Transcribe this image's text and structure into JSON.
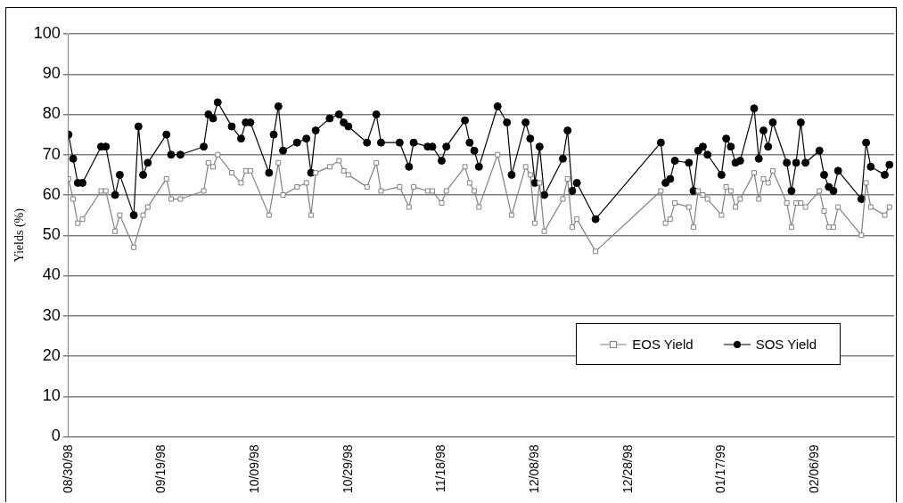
{
  "chart_data": {
    "type": "line",
    "ylabel": "Yields (%)",
    "xlim": [
      "1998-08-30",
      "1999-02-23"
    ],
    "xticks": [
      {
        "value": "1998-08-30",
        "label": "08/30/98"
      },
      {
        "value": "1998-09-19",
        "label": "09/19/98"
      },
      {
        "value": "1998-10-09",
        "label": "10/09/98"
      },
      {
        "value": "1998-10-29",
        "label": "10/29/98"
      },
      {
        "value": "1998-11-18",
        "label": "11/18/98"
      },
      {
        "value": "1998-12-08",
        "label": "12/08/98"
      },
      {
        "value": "1998-12-28",
        "label": "12/28/98"
      },
      {
        "value": "1999-01-17",
        "label": "01/17/99"
      },
      {
        "value": "1999-02-06",
        "label": "02/06/99"
      }
    ],
    "ylim": [
      0,
      100
    ],
    "yticks": [
      0,
      10,
      20,
      30,
      40,
      50,
      60,
      70,
      80,
      90,
      100
    ],
    "grid": "y",
    "legend": "bottom right",
    "line_style": "solid",
    "series": [
      {
        "name": "EOS Yield",
        "color": "#808080",
        "marker": "square",
        "x": [
          "1998-08-30",
          "1998-08-31",
          "1998-09-01",
          "1998-09-02",
          "1998-09-06",
          "1998-09-07",
          "1998-09-09",
          "1998-09-10",
          "1998-09-13",
          "1998-09-15",
          "1998-09-16",
          "1998-09-20",
          "1998-09-21",
          "1998-09-23",
          "1998-09-28",
          "1998-09-29",
          "1998-09-30",
          "1998-10-01",
          "1998-10-04",
          "1998-10-06",
          "1998-10-07",
          "1998-10-08",
          "1998-10-12",
          "1998-10-14",
          "1998-10-15",
          "1998-10-18",
          "1998-10-20",
          "1998-10-21",
          "1998-10-22",
          "1998-10-25",
          "1998-10-27",
          "1998-10-28",
          "1998-10-29",
          "1998-11-02",
          "1998-11-04",
          "1998-11-05",
          "1998-11-09",
          "1998-11-11",
          "1998-11-12",
          "1998-11-15",
          "1998-11-16",
          "1998-11-18",
          "1998-11-19",
          "1998-11-23",
          "1998-11-24",
          "1998-11-25",
          "1998-11-26",
          "1998-11-30",
          "1998-12-03",
          "1998-12-06",
          "1998-12-07",
          "1998-12-08",
          "1998-12-09",
          "1998-12-10",
          "1998-12-14",
          "1998-12-15",
          "1998-12-16",
          "1998-12-17",
          "1998-12-21",
          "1999-01-04",
          "1999-01-05",
          "1999-01-06",
          "1999-01-07",
          "1999-01-10",
          "1999-01-11",
          "1999-01-12",
          "1999-01-13",
          "1999-01-14",
          "1999-01-17",
          "1999-01-18",
          "1999-01-19",
          "1999-01-20",
          "1999-01-21",
          "1999-01-24",
          "1999-01-25",
          "1999-01-26",
          "1999-01-27",
          "1999-01-28",
          "1999-01-31",
          "1999-02-01",
          "1999-02-02",
          "1999-02-03",
          "1999-02-04",
          "1999-02-07",
          "1999-02-08",
          "1999-02-09",
          "1999-02-10",
          "1999-02-11",
          "1999-02-16",
          "1999-02-17",
          "1999-02-18",
          "1999-02-21",
          "1999-02-22"
        ],
        "values": [
          64,
          59,
          53,
          54,
          61,
          61,
          51,
          55,
          47,
          55,
          57,
          64,
          59,
          59,
          61,
          68,
          67,
          70,
          65.5,
          63,
          66,
          66,
          55,
          68,
          60,
          62,
          63,
          55,
          65.5,
          67,
          68.5,
          66,
          65,
          62,
          68,
          61,
          62,
          57,
          62,
          61,
          61,
          58,
          61,
          67,
          63,
          61,
          57,
          70,
          55,
          67,
          65,
          53,
          63,
          51,
          59,
          64,
          52,
          54,
          46,
          61,
          53,
          54,
          58,
          57,
          52,
          61,
          60,
          59,
          55,
          62,
          61,
          57,
          59,
          65.5,
          59,
          64,
          63,
          66,
          58,
          52,
          58,
          58,
          57,
          61,
          56,
          52,
          52,
          57,
          50,
          63,
          57,
          55,
          57
        ]
      },
      {
        "name": "SOS Yield",
        "color": "#000000",
        "marker": "circle",
        "x": [
          "1998-08-30",
          "1998-08-31",
          "1998-09-01",
          "1998-09-02",
          "1998-09-06",
          "1998-09-07",
          "1998-09-09",
          "1998-09-10",
          "1998-09-13",
          "1998-09-14",
          "1998-09-15",
          "1998-09-16",
          "1998-09-20",
          "1998-09-21",
          "1998-09-23",
          "1998-09-28",
          "1998-09-29",
          "1998-09-30",
          "1998-10-01",
          "1998-10-04",
          "1998-10-06",
          "1998-10-07",
          "1998-10-08",
          "1998-10-12",
          "1998-10-13",
          "1998-10-14",
          "1998-10-15",
          "1998-10-18",
          "1998-10-20",
          "1998-10-21",
          "1998-10-22",
          "1998-10-25",
          "1998-10-27",
          "1998-10-28",
          "1998-10-29",
          "1998-11-02",
          "1998-11-04",
          "1998-11-05",
          "1998-11-09",
          "1998-11-11",
          "1998-11-12",
          "1998-11-15",
          "1998-11-16",
          "1998-11-18",
          "1998-11-19",
          "1998-11-23",
          "1998-11-24",
          "1998-11-25",
          "1998-11-26",
          "1998-11-30",
          "1998-12-02",
          "1998-12-03",
          "1998-12-06",
          "1998-12-07",
          "1998-12-08",
          "1998-12-09",
          "1998-12-10",
          "1998-12-14",
          "1998-12-15",
          "1998-12-16",
          "1998-12-17",
          "1998-12-21",
          "1999-01-04",
          "1999-01-05",
          "1999-01-06",
          "1999-01-07",
          "1999-01-10",
          "1999-01-11",
          "1999-01-12",
          "1999-01-13",
          "1999-01-14",
          "1999-01-17",
          "1999-01-18",
          "1999-01-19",
          "1999-01-20",
          "1999-01-21",
          "1999-01-24",
          "1999-01-25",
          "1999-01-26",
          "1999-01-27",
          "1999-01-28",
          "1999-01-31",
          "1999-02-01",
          "1999-02-02",
          "1999-02-03",
          "1999-02-04",
          "1999-02-07",
          "1999-02-08",
          "1999-02-09",
          "1999-02-10",
          "1999-02-11",
          "1999-02-16",
          "1999-02-17",
          "1999-02-18",
          "1999-02-21",
          "1999-02-22"
        ],
        "values": [
          75,
          69,
          63,
          63,
          72,
          72,
          60,
          65,
          55,
          77,
          65,
          68,
          75,
          70,
          70,
          72,
          80,
          79,
          83,
          77,
          74,
          78,
          78,
          65.5,
          75,
          82,
          71,
          73,
          74,
          65.5,
          76,
          79,
          80,
          78,
          77,
          73,
          80,
          73,
          73,
          67,
          73,
          72,
          72,
          68.5,
          72,
          78.5,
          73,
          71,
          67,
          82,
          78,
          65,
          78,
          74,
          63,
          72,
          60,
          69,
          76,
          61,
          63,
          54,
          73,
          63,
          64,
          68.5,
          68,
          61,
          71,
          72,
          70,
          65,
          74,
          72,
          68,
          68.5,
          81.5,
          69,
          76,
          72,
          78,
          68,
          61,
          68,
          78,
          68,
          71,
          65,
          62,
          61,
          66,
          59,
          73,
          67,
          65,
          67.5
        ]
      }
    ]
  }
}
